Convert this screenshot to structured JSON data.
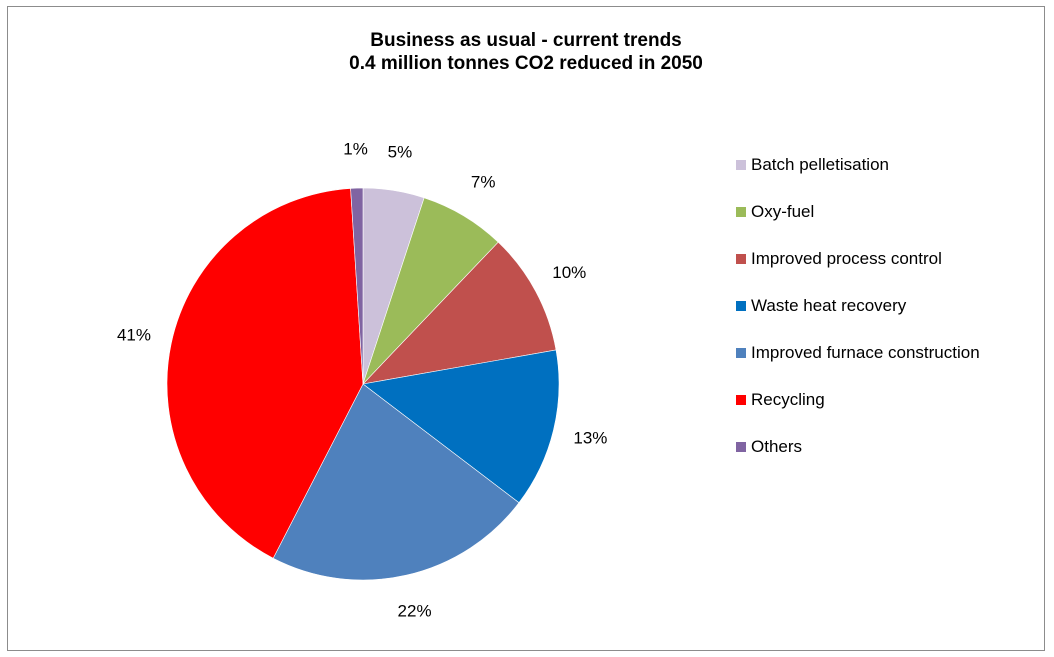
{
  "chart_data": {
    "type": "pie",
    "title": "Business as usual - current trends",
    "subtitle": "0.4 million tonnes CO2 reduced in 2050",
    "legend_position": "right",
    "series": [
      {
        "name": "Batch pelletisation",
        "value": 5,
        "label": "5%",
        "color": "#ccc1da"
      },
      {
        "name": "Oxy-fuel",
        "value": 7,
        "label": "7%",
        "color": "#9bbb59"
      },
      {
        "name": "Improved process control",
        "value": 10,
        "label": "10%",
        "color": "#c0504d"
      },
      {
        "name": "Waste heat recovery",
        "value": 13,
        "label": "13%",
        "color": "#0070c0"
      },
      {
        "name": "Improved furnace construction",
        "value": 22,
        "label": "22%",
        "color": "#4f81bd"
      },
      {
        "name": "Recycling",
        "value": 41,
        "label": "41%",
        "color": "#ff0000"
      },
      {
        "name": "Others",
        "value": 1,
        "label": "1%",
        "color": "#8064a2"
      }
    ]
  }
}
